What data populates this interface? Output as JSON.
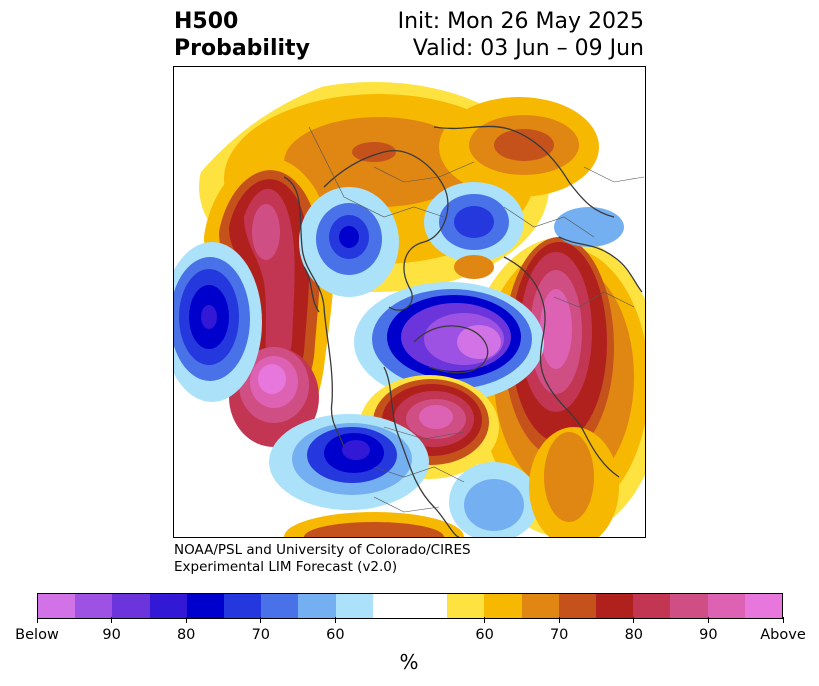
{
  "header": {
    "title_line1": "H500",
    "title_line2": "Probability",
    "init": "Init: Mon 26 May 2025",
    "valid": "Valid: 03 Jun – 09 Jun"
  },
  "map": {
    "projection": "north-polar-stereographic",
    "hemisphere": "Northern Hemisphere",
    "features": [
      {
        "type": "above",
        "region": "Gulf of Alaska / Pacific",
        "peak_category": "Above"
      },
      {
        "type": "below",
        "region": "North Pacific",
        "peak_category": "90"
      },
      {
        "type": "below",
        "region": "Western Canada",
        "peak_category": "90"
      },
      {
        "type": "above",
        "region": "Eastern Siberia",
        "peak_category": "Above"
      },
      {
        "type": "below",
        "region": "Central Siberia",
        "peak_category": "90"
      },
      {
        "type": "above",
        "region": "Northern Europe / Scandinavia",
        "peak_category": "Above"
      },
      {
        "type": "above",
        "region": "Eastern Europe",
        "peak_category": "80"
      },
      {
        "type": "above",
        "region": "Eastern Canada / Labrador",
        "peak_category": "80"
      },
      {
        "type": "above",
        "region": "Western North Pacific",
        "peak_category": "80"
      }
    ]
  },
  "credit": {
    "line1": "NOAA/PSL and University of Colorado/CIRES",
    "line2": "Experimental LIM Forecast (v2.0)"
  },
  "colorbar": {
    "colors": [
      "#d173e6",
      "#9d52e3",
      "#6b35db",
      "#3318d6",
      "#0000cc",
      "#2438dd",
      "#4a72e8",
      "#74b0f1",
      "#ace1fa",
      "#ffffff",
      "#ffffff",
      "#fee240",
      "#f6b800",
      "#e08612",
      "#c5511b",
      "#b0211e",
      "#c23653",
      "#cf4f85",
      "#dd62b4",
      "#e776dd"
    ],
    "tick_labels": [
      "Below",
      "90",
      "80",
      "70",
      "60",
      "60",
      "70",
      "80",
      "90",
      "Above"
    ],
    "unit_label": "%"
  }
}
